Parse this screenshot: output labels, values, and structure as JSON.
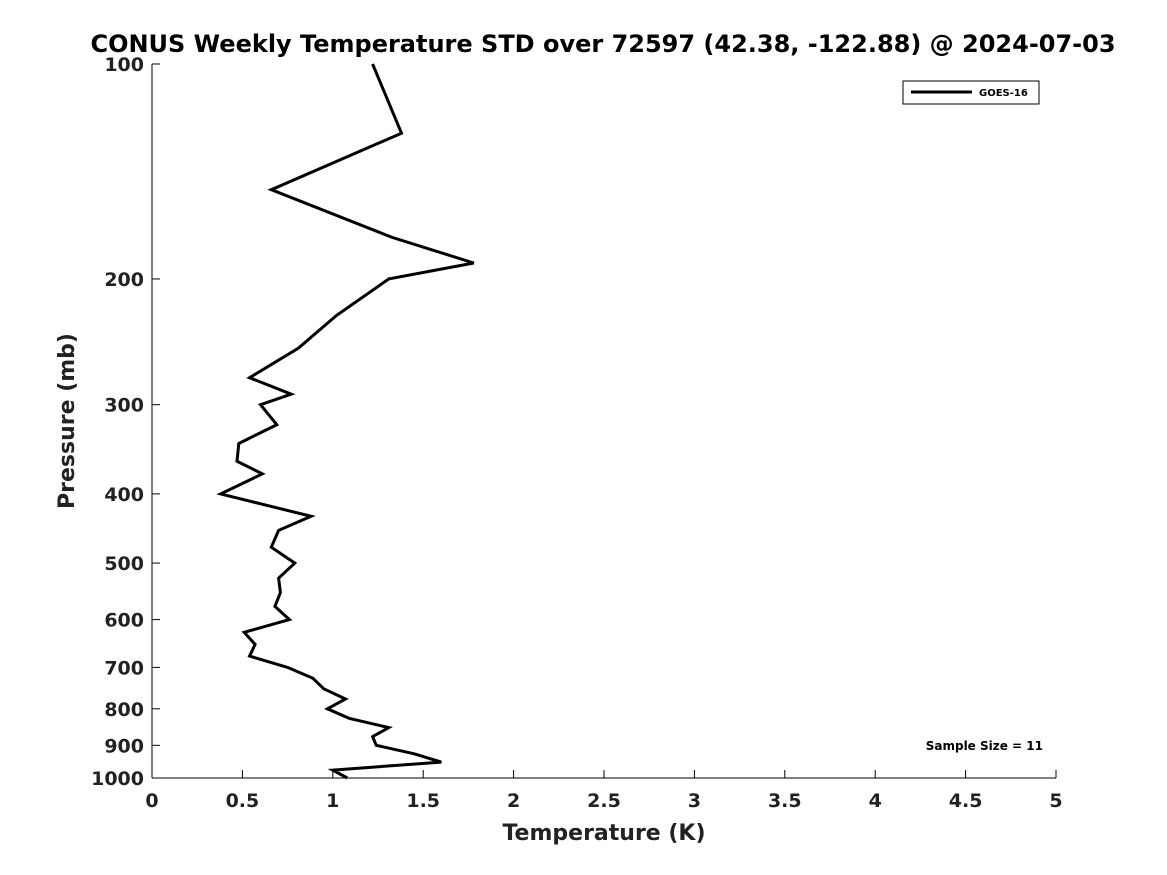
{
  "chart_data": {
    "type": "line",
    "title": "CONUS Weekly Temperature STD over 72597 (42.38, -122.88) @ 2024-07-03",
    "xlabel": "Temperature (K)",
    "ylabel": "Pressure (mb)",
    "xlim": [
      0,
      5
    ],
    "ylim": [
      1000,
      100
    ],
    "y_scale": "log",
    "y_reversed": true,
    "grid": false,
    "legend_position": "top-right",
    "x_ticks": [
      0,
      0.5,
      1,
      1.5,
      2,
      2.5,
      3,
      3.5,
      4,
      4.5,
      5
    ],
    "x_tick_labels": [
      "0",
      "0.5",
      "1",
      "1.5",
      "2",
      "2.5",
      "3",
      "3.5",
      "4",
      "4.5",
      "5"
    ],
    "y_ticks": [
      100,
      200,
      300,
      400,
      500,
      600,
      700,
      800,
      900,
      1000
    ],
    "y_tick_labels": [
      "100",
      "200",
      "300",
      "400",
      "500",
      "600",
      "700",
      "800",
      "900",
      "1000"
    ],
    "series": [
      {
        "name": "GOES-16",
        "color": "#000000",
        "x": [
          1.22,
          1.38,
          0.66,
          1.33,
          1.78,
          1.31,
          1.02,
          0.81,
          0.54,
          0.77,
          0.6,
          0.69,
          0.48,
          0.47,
          0.61,
          0.38,
          0.88,
          0.7,
          0.66,
          0.79,
          0.7,
          0.71,
          0.68,
          0.76,
          0.51,
          0.57,
          0.54,
          0.75,
          0.89,
          0.95,
          1.07,
          0.97,
          1.09,
          1.31,
          1.22,
          1.24,
          1.45,
          1.6,
          1.0,
          1.08
        ],
        "y": [
          100,
          125,
          150,
          175,
          190,
          200,
          225,
          250,
          275,
          290,
          300,
          320,
          340,
          360,
          375,
          400,
          430,
          450,
          475,
          500,
          525,
          550,
          575,
          600,
          625,
          650,
          675,
          700,
          725,
          750,
          775,
          800,
          825,
          850,
          875,
          900,
          925,
          950,
          975,
          1000
        ]
      }
    ],
    "annotations": [
      {
        "text": "Sample Size = 11",
        "position": "bottom-right"
      }
    ]
  }
}
